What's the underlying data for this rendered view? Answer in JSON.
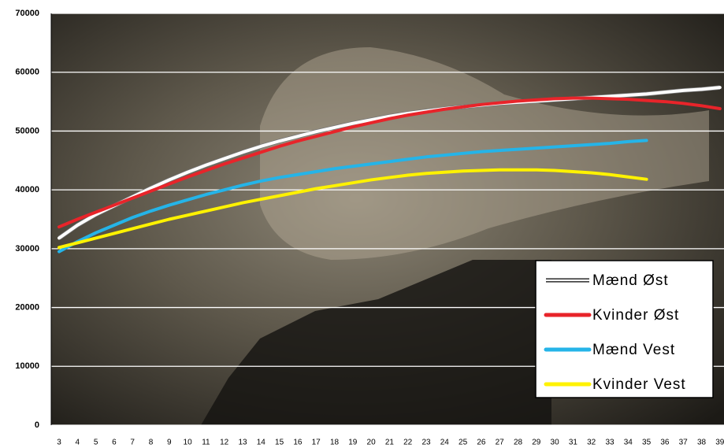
{
  "chart_data": {
    "type": "line",
    "categories": [
      "3",
      "4",
      "5",
      "6",
      "7",
      "8",
      "9",
      "10",
      "11",
      "12",
      "13",
      "14",
      "15",
      "16",
      "17",
      "18",
      "19",
      "20",
      "21",
      "22",
      "23",
      "24",
      "25",
      "26",
      "27",
      "28",
      "29",
      "30",
      "31",
      "32",
      "33",
      "34",
      "35",
      "36",
      "37",
      "38",
      "39"
    ],
    "series": [
      {
        "name": "Mænd Øst",
        "color": "#ffffff",
        "values": [
          31800,
          34000,
          35800,
          37300,
          38800,
          40300,
          41700,
          43000,
          44200,
          45300,
          46400,
          47400,
          48300,
          49100,
          49900,
          50600,
          51300,
          51900,
          52500,
          53000,
          53400,
          53800,
          54100,
          54400,
          54700,
          54900,
          55100,
          55300,
          55500,
          55700,
          55900,
          56100,
          56300,
          56600,
          56900,
          57100,
          57400
        ]
      },
      {
        "name": "Kvinder Øst",
        "color": "#e8242a",
        "values": [
          33700,
          35000,
          36200,
          37400,
          38600,
          39800,
          41000,
          42200,
          43300,
          44400,
          45400,
          46400,
          47400,
          48300,
          49100,
          49900,
          50700,
          51400,
          52100,
          52700,
          53200,
          53700,
          54100,
          54500,
          54800,
          55100,
          55300,
          55500,
          55600,
          55600,
          55500,
          55400,
          55200,
          55000,
          54700,
          54300,
          53800
        ]
      },
      {
        "name": "Mænd Vest",
        "color": "#25b4e8",
        "values": [
          29500,
          31200,
          32700,
          34000,
          35300,
          36400,
          37400,
          38300,
          39200,
          40000,
          40800,
          41500,
          42100,
          42600,
          43100,
          43600,
          44000,
          44400,
          44800,
          45200,
          45600,
          45900,
          46200,
          46500,
          46700,
          46900,
          47100,
          47300,
          47500,
          47700,
          47900,
          48200,
          48400,
          null,
          null,
          null,
          null
        ]
      },
      {
        "name": "Kvinder Vest",
        "color": "#fff200",
        "values": [
          30200,
          31000,
          31800,
          32600,
          33400,
          34200,
          35000,
          35700,
          36400,
          37100,
          37800,
          38400,
          39000,
          39600,
          40200,
          40700,
          41200,
          41700,
          42100,
          42500,
          42800,
          43000,
          43200,
          43300,
          43400,
          43400,
          43400,
          43300,
          43100,
          42900,
          42600,
          42200,
          41800,
          null,
          null,
          null,
          null
        ]
      }
    ],
    "ylim": [
      0,
      70000
    ],
    "yticks": [
      0,
      10000,
      20000,
      30000,
      40000,
      50000,
      60000,
      70000
    ],
    "grid": true,
    "legend": "lower right"
  }
}
